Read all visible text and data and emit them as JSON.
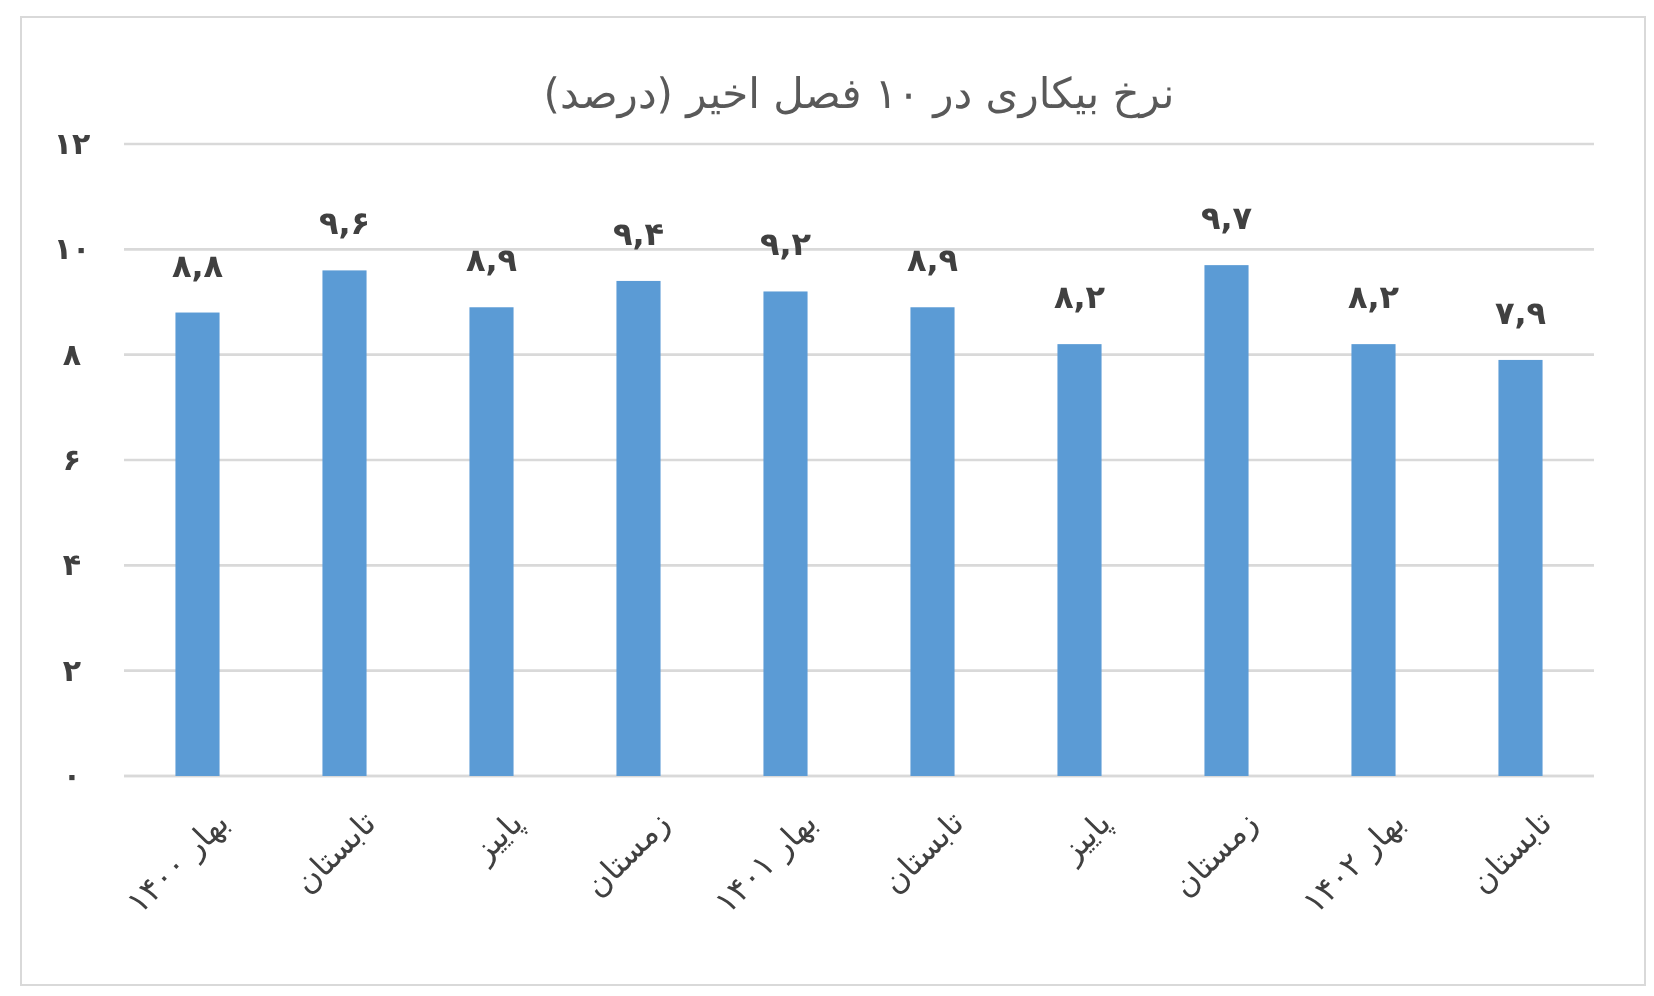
{
  "chart_data": {
    "type": "bar",
    "title": "نرخ بیکاری در ۱۰ فصل اخیر (درصد)",
    "categories": [
      "بهار ۱۴۰۰",
      "تابستان",
      "پاییز",
      "زمستان",
      "بهار ۱۴۰۱",
      "تابستان",
      "پاییز",
      "زمستان",
      "بهار ۱۴۰۲",
      "تابستان"
    ],
    "values": [
      8.8,
      9.6,
      8.9,
      9.4,
      9.2,
      8.9,
      8.2,
      9.7,
      8.2,
      7.9
    ],
    "value_labels": [
      "۸,۸",
      "۹,۶",
      "۸,۹",
      "۹,۴",
      "۹,۲",
      "۸,۹",
      "۸,۲",
      "۹,۷",
      "۸,۲",
      "۷,۹"
    ],
    "color": "#5b9bd5",
    "ylim": [
      0,
      12
    ],
    "yticks": [
      {
        "value": 0,
        "label": "۰"
      },
      {
        "value": 2,
        "label": "۲"
      },
      {
        "value": 4,
        "label": "۴"
      },
      {
        "value": 6,
        "label": "۶"
      },
      {
        "value": 8,
        "label": "۸"
      },
      {
        "value": 10,
        "label": "۱۰"
      },
      {
        "value": 12,
        "label": "۱۲"
      }
    ],
    "grid": "y"
  }
}
